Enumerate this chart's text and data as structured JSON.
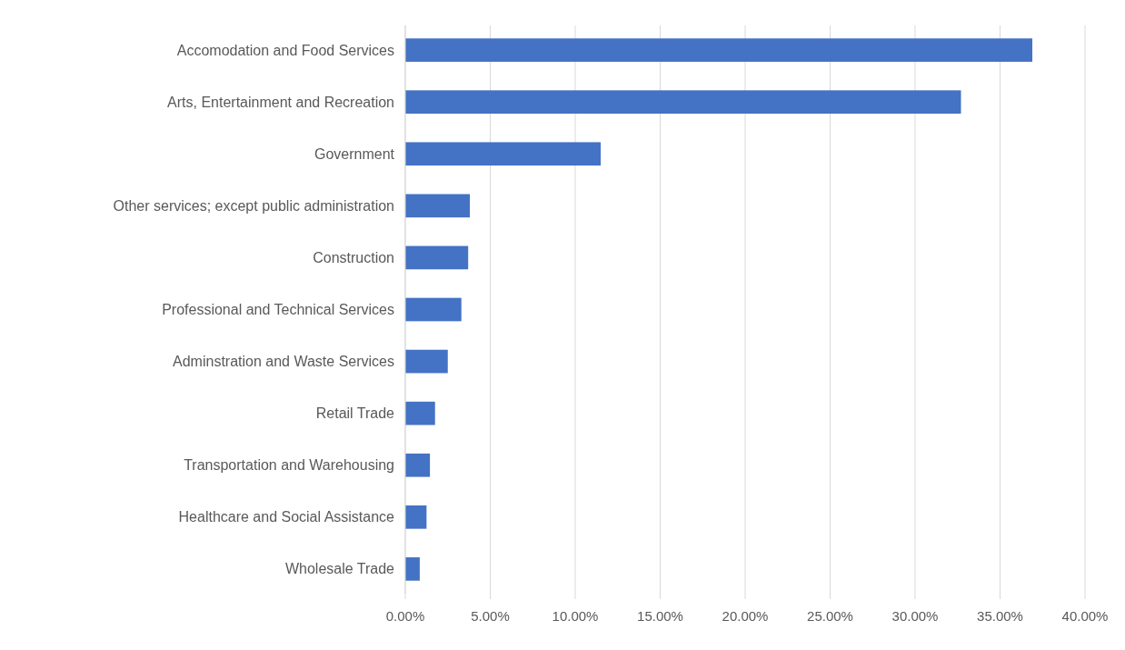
{
  "chart_data": {
    "type": "bar",
    "orientation": "horizontal",
    "categories": [
      "Accomodation and Food Services",
      "Arts, Entertainment and Recreation",
      "Government",
      "Other services; except public administration",
      "Construction",
      "Professional and Technical Services",
      "Adminstration and Waste Services",
      "Retail Trade",
      "Transportation and Warehousing",
      "Healthcare and Social Assistance",
      "Wholesale Trade"
    ],
    "values": [
      0.369,
      0.327,
      0.115,
      0.038,
      0.037,
      0.033,
      0.025,
      0.0175,
      0.0145,
      0.0125,
      0.0085
    ],
    "color": "#4472c4",
    "xlim": [
      0,
      0.4
    ],
    "xticks": [
      {
        "value": 0,
        "label": "0.00%"
      },
      {
        "value": 0.05,
        "label": "5.00%"
      },
      {
        "value": 0.1,
        "label": "10.00%"
      },
      {
        "value": 0.15,
        "label": "15.00%"
      },
      {
        "value": 0.2,
        "label": "20.00%"
      },
      {
        "value": 0.25,
        "label": "25.00%"
      },
      {
        "value": 0.3,
        "label": "30.00%"
      },
      {
        "value": 0.35,
        "label": "35.00%"
      },
      {
        "value": 0.4,
        "label": "40.00%"
      }
    ],
    "grid": "x"
  }
}
